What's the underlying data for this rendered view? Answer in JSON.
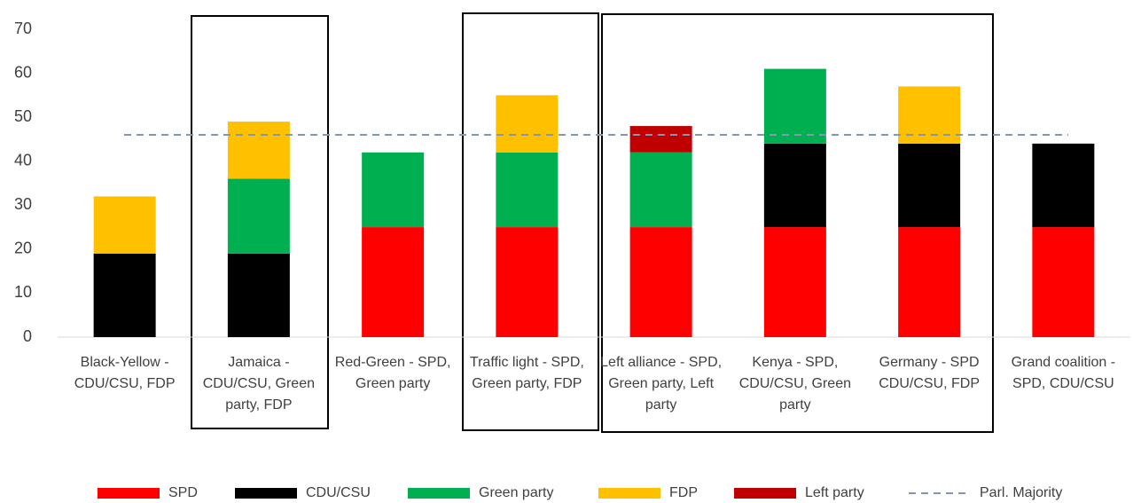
{
  "chart_data": {
    "type": "stacked_bar",
    "categories": [
      "Black-Yellow - CDU/CSU, FDP",
      "Jamaica - CDU/CSU, Green party, FDP",
      "Red-Green - SPD, Green party",
      "Traffic light - SPD, Green party, FDP",
      "Left alliance - SPD, Green party, Left party",
      "Kenya - SPD, CDU/CSU, Green party",
      "Germany - SPD CDU/CSU, FDP",
      "Grand coalition - SPD, CDU/CSU"
    ],
    "series": [
      {
        "name": "SPD",
        "color": "#ff0000",
        "values": [
          null,
          null,
          25,
          25,
          25,
          25,
          25,
          25
        ]
      },
      {
        "name": "CDU/CSU",
        "color": "#000000",
        "values": [
          19,
          19,
          null,
          null,
          null,
          19,
          19,
          19
        ]
      },
      {
        "name": "Green party",
        "color": "#00b050",
        "values": [
          null,
          17,
          17,
          17,
          17,
          17,
          null,
          null
        ]
      },
      {
        "name": "FDP",
        "color": "#ffc000",
        "values": [
          13,
          13,
          null,
          13,
          null,
          null,
          13,
          null
        ]
      },
      {
        "name": "Left party",
        "color": "#c00000",
        "values": [
          null,
          null,
          null,
          null,
          6,
          null,
          null,
          null
        ]
      }
    ],
    "majority": {
      "name": "Parl. Majority",
      "value": 46,
      "color": "#8497b0"
    },
    "ylim": [
      0,
      70
    ],
    "yticks": [
      0,
      10,
      20,
      30,
      40,
      50,
      60,
      70
    ],
    "grid": false,
    "legend": "bottom"
  }
}
